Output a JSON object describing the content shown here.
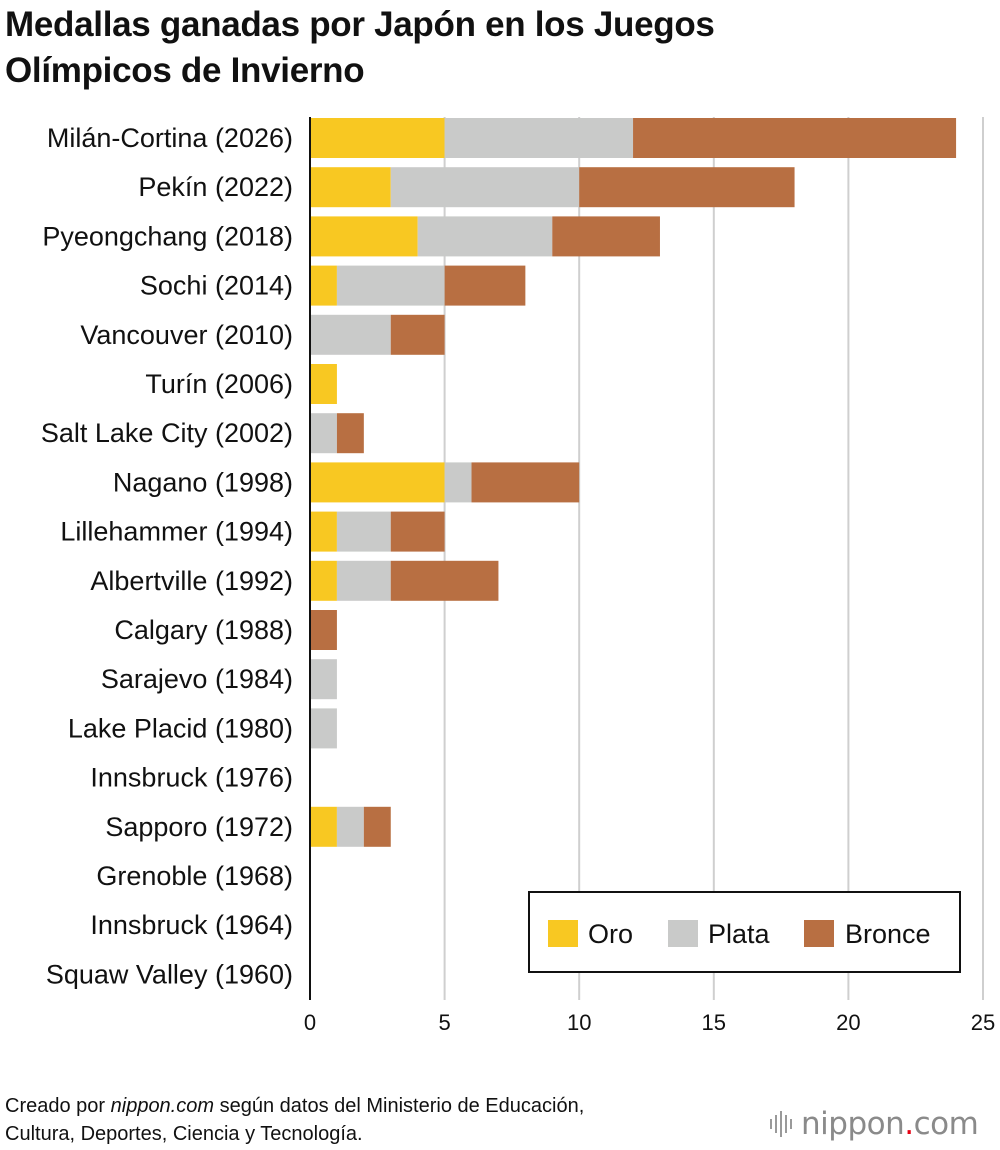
{
  "title_lines": [
    "Medallas ganadas por Japón en los Juegos",
    "Olímpicos de Invierno"
  ],
  "colors": {
    "oro": "#f8c822",
    "plata": "#c9cac9",
    "bronce": "#b86f42",
    "grid": "#cfcfcf",
    "axis": "#111111"
  },
  "chart_data": {
    "type": "bar",
    "orientation": "horizontal",
    "stacked": true,
    "title": "Medallas ganadas por Japón en los Juegos Olímpicos de Invierno",
    "categories": [
      "Milán-Cortina (2026)",
      "Pekín (2022)",
      "Pyeongchang (2018)",
      "Sochi (2014)",
      "Vancouver (2010)",
      "Turín (2006)",
      "Salt Lake City (2002)",
      "Nagano (1998)",
      "Lillehammer (1994)",
      "Albertville (1992)",
      "Calgary (1988)",
      "Sarajevo (1984)",
      "Lake Placid (1980)",
      "Innsbruck (1976)",
      "Sapporo (1972)",
      "Grenoble (1968)",
      "Innsbruck (1964)",
      "Squaw Valley (1960)"
    ],
    "series": [
      {
        "name": "Oro",
        "key": "oro",
        "values": [
          5,
          3,
          4,
          1,
          0,
          1,
          0,
          5,
          1,
          1,
          0,
          0,
          0,
          0,
          1,
          0,
          0,
          0
        ]
      },
      {
        "name": "Plata",
        "key": "plata",
        "values": [
          7,
          7,
          5,
          4,
          3,
          0,
          1,
          1,
          2,
          2,
          0,
          1,
          1,
          0,
          1,
          0,
          0,
          0
        ]
      },
      {
        "name": "Bronce",
        "key": "bronce",
        "values": [
          12,
          8,
          4,
          3,
          2,
          0,
          1,
          4,
          2,
          4,
          1,
          0,
          0,
          0,
          1,
          0,
          0,
          0
        ]
      }
    ],
    "xlim": [
      0,
      25
    ],
    "xticks": [
      0,
      5,
      10,
      15,
      20,
      25
    ],
    "grid": true,
    "legend_position": "bottom-right",
    "xlabel": "",
    "ylabel": ""
  },
  "footer": {
    "line1_prefix": "Creado por ",
    "line1_source": "nippon.com",
    "line1_suffix": " según datos del Ministerio de Educación,",
    "line2": "Cultura, Deportes, Ciencia y Tecnología."
  },
  "logo": {
    "name": "nippon",
    "dot": ".",
    "tld": "com"
  }
}
